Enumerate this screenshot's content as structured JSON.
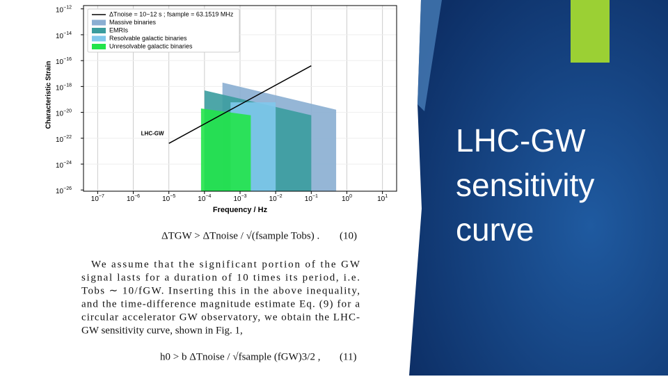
{
  "slide": {
    "title_lines": [
      "LHC-GW",
      "sensitivity",
      "curve"
    ]
  },
  "chart_data": {
    "type": "area",
    "log_x": true,
    "log_y": true,
    "grid": true,
    "legend": "upper left",
    "xlabel": "Frequency / Hz",
    "ylabel": "Characteristic Strain",
    "xlim": [
      4e-08,
      25
    ],
    "ylim": [
      8e-27,
      1.8e-12
    ],
    "xticks": [
      {
        "value": 1e-07,
        "label": "10−7"
      },
      {
        "value": 1e-06,
        "label": "10−6"
      },
      {
        "value": 1e-05,
        "label": "10−5"
      },
      {
        "value": 0.0001,
        "label": "10−4"
      },
      {
        "value": 0.001,
        "label": "10−3"
      },
      {
        "value": 0.01,
        "label": "10−2"
      },
      {
        "value": 0.1,
        "label": "10−1"
      },
      {
        "value": 1,
        "label": "100"
      },
      {
        "value": 10,
        "label": "101"
      }
    ],
    "yticks": [
      {
        "value": 1e-12,
        "label": "10−12"
      },
      {
        "value": 1e-14,
        "label": "10−14"
      },
      {
        "value": 1e-16,
        "label": "10−16"
      },
      {
        "value": 1e-18,
        "label": "10−18"
      },
      {
        "value": 1e-20,
        "label": "10−20"
      },
      {
        "value": 1e-22,
        "label": "10−22"
      },
      {
        "value": 1e-24,
        "label": "10−24"
      },
      {
        "value": 1e-26,
        "label": "10−26"
      }
    ],
    "annotation": "LHC-GW",
    "series": [
      {
        "name": "ΔTnoise = 10−12 s ; fsample = 63.1519 MHz",
        "kind": "line",
        "color": "#000000",
        "x": [
          1e-05,
          0.1
        ],
        "values": [
          4e-23,
          4e-17
        ]
      },
      {
        "name": "Massive binaries",
        "kind": "area",
        "color": "#8aaed2",
        "x": [
          0.00032,
          0.5
        ],
        "values": [
          2e-18,
          1.6e-20
        ]
      },
      {
        "name": "EMRIs",
        "kind": "area",
        "color": "#3a9c9e",
        "x": [
          0.0001,
          0.1
        ],
        "values": [
          5e-19,
          6e-21
        ]
      },
      {
        "name": "Resolvable galactic binaries",
        "kind": "area",
        "color": "#80c8ec",
        "x": [
          0.00054,
          0.01
        ],
        "values": [
          6e-20,
          6e-20
        ]
      },
      {
        "name": "Unresolvable galactic binaries",
        "kind": "area",
        "color": "#22e44a",
        "x": [
          8e-05,
          0.002
        ],
        "values": [
          2e-20,
          6e-21
        ]
      }
    ]
  },
  "paper": {
    "eq10": {
      "text": "ΔTGW > ΔTnoise / √(fsample Tobs) .",
      "number": "(10)"
    },
    "paragraph": [
      "We assume that the significant portion of the GW",
      "signal lasts for a duration of 10 times its period, i.e.",
      "Tobs ∼ 10/fGW. Inserting this in the above inequality,",
      "and the time-difference magnitude estimate Eq. (9) for a",
      "circular accelerator GW observatory, we obtain the LHC-",
      "GW sensitivity curve, shown in Fig. 1,"
    ],
    "eq11": {
      "text": "h0 > b ΔTnoise / √fsample (fGW)3/2 ,",
      "number": "(11)"
    }
  }
}
